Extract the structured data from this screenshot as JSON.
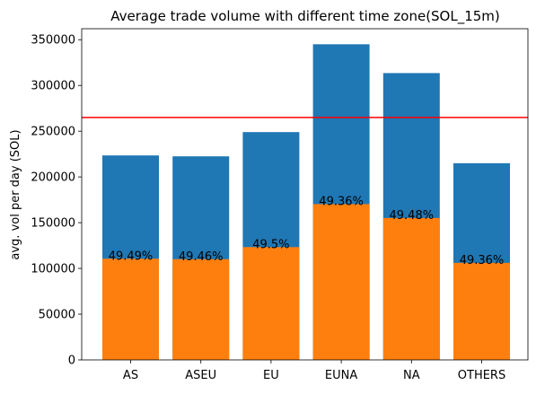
{
  "chart_data": {
    "type": "bar",
    "title": "Average trade volume with different time zone(SOL_15m)",
    "xlabel": "",
    "ylabel": "avg. vol per day (SOL)",
    "categories": [
      "AS",
      "ASEU",
      "EU",
      "EUNA",
      "NA",
      "OTHERS"
    ],
    "series": [
      {
        "name": "total",
        "color": "#1f77b4",
        "values": [
          223500,
          222500,
          249000,
          345000,
          313500,
          215000
        ]
      },
      {
        "name": "part",
        "color": "#ff7f0e",
        "values": [
          110600,
          110100,
          123300,
          170300,
          155100,
          106100
        ]
      }
    ],
    "data_labels": [
      "49.49%",
      "49.46%",
      "49.5%",
      "49.36%",
      "49.48%",
      "49.36%"
    ],
    "reference_line": {
      "value": 265000,
      "color": "#ff0000"
    },
    "ylim": [
      0,
      362000
    ],
    "yticks": [
      0,
      50000,
      100000,
      150000,
      200000,
      250000,
      300000,
      350000
    ],
    "ytick_labels": [
      "0",
      "50000",
      "100000",
      "150000",
      "200000",
      "250000",
      "300000",
      "350000"
    ]
  }
}
